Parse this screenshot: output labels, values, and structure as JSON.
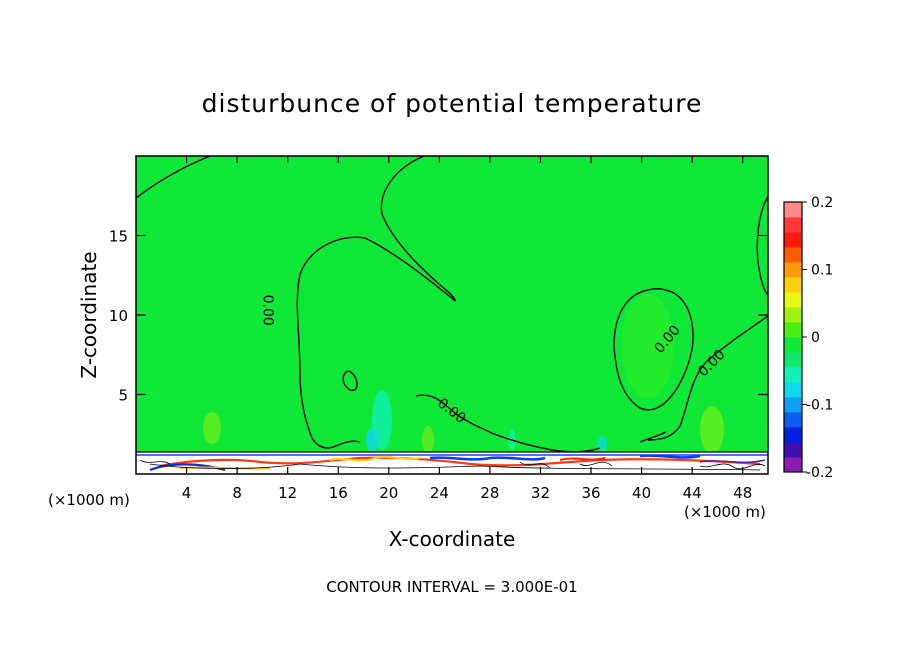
{
  "chart_data": {
    "type": "heatmap",
    "title": "disturbunce of potential temperature",
    "xlabel": "X-coordinate",
    "ylabel": "Z-coordinate",
    "x_unit": "(×1000 m)",
    "x_unit_right": "(×1000 m)",
    "footer": "CONTOUR INTERVAL = 3.000E-01",
    "xlim": [
      0,
      50
    ],
    "ylim": [
      0,
      20
    ],
    "x_ticks": [
      4,
      8,
      12,
      16,
      20,
      24,
      28,
      32,
      36,
      40,
      44,
      48
    ],
    "x_tick_labels": [
      "4",
      "8",
      "12",
      "16",
      "20",
      "24",
      "28",
      "32",
      "36",
      "40",
      "44",
      "48"
    ],
    "y_ticks": [
      5,
      10,
      15
    ],
    "y_tick_labels": [
      "5",
      "10",
      "15"
    ],
    "background_value": 0,
    "contour_labels": [
      {
        "text": "0.00",
        "x": 10.5,
        "y": 10.3,
        "angle": 90
      },
      {
        "text": "0.00",
        "x": 25.0,
        "y": 4.0,
        "angle": 38
      },
      {
        "text": "0.00",
        "x": 42.0,
        "y": 8.5,
        "angle": -50
      },
      {
        "text": "0.00",
        "x": 45.5,
        "y": 7.0,
        "angle": -45
      }
    ],
    "colorbar": {
      "min": -0.2,
      "max": 0.2,
      "tick_labels": [
        "0.2",
        "0.1",
        "0",
        "-0.1",
        "-0.2"
      ],
      "colors": [
        "#8b1ab5",
        "#3d10b0",
        "#0020e0",
        "#0a5ef0",
        "#0fa0f5",
        "#10d8f0",
        "#10f0b8",
        "#10e870",
        "#10e838",
        "#48f010",
        "#9ef010",
        "#e8f810",
        "#ffd010",
        "#ff9a08",
        "#ff5a05",
        "#ff1a10",
        "#ff3838",
        "#ff8a8a"
      ]
    }
  }
}
